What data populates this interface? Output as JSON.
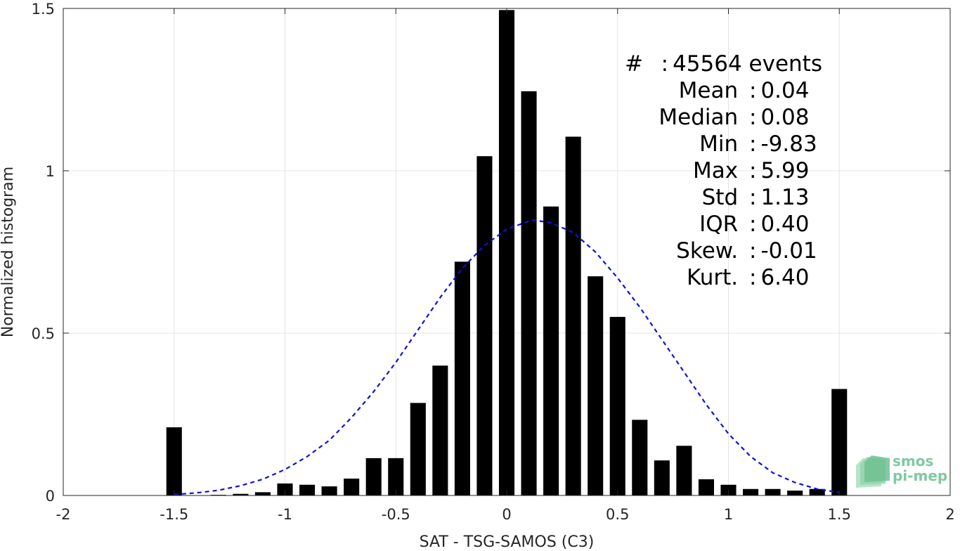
{
  "chart_data": {
    "type": "bar",
    "xlabel": "SAT - TSG-SAMOS (C3)",
    "ylabel": "Normalized histogram",
    "xlim": [
      -2,
      2
    ],
    "ylim": [
      0,
      1.5
    ],
    "xticks": [
      -2,
      -1.5,
      -1,
      -0.5,
      0,
      0.5,
      1,
      1.5,
      2
    ],
    "xtick_labels": [
      "-2",
      "-1.5",
      "-1",
      "-0.5",
      "0",
      "0.5",
      "1",
      "1.5",
      "2"
    ],
    "yticks": [
      0,
      0.5,
      1,
      1.5
    ],
    "ytick_labels": [
      "0",
      "0.5",
      "1",
      "1.5"
    ],
    "grid": true,
    "bar_color": "#000000",
    "bars": {
      "x": [
        -1.5,
        -1.4,
        -1.3,
        -1.2,
        -1.1,
        -1.0,
        -0.9,
        -0.8,
        -0.7,
        -0.6,
        -0.5,
        -0.4,
        -0.3,
        -0.2,
        -0.1,
        0.0,
        0.1,
        0.2,
        0.3,
        0.4,
        0.5,
        0.6,
        0.7,
        0.8,
        0.9,
        1.0,
        1.1,
        1.2,
        1.3,
        1.4,
        1.5
      ],
      "values": [
        0.21,
        0.0,
        0.002,
        0.005,
        0.01,
        0.037,
        0.033,
        0.028,
        0.052,
        0.115,
        0.115,
        0.285,
        0.4,
        0.72,
        1.045,
        1.495,
        1.245,
        0.89,
        1.105,
        0.675,
        0.55,
        0.233,
        0.108,
        0.153,
        0.05,
        0.033,
        0.02,
        0.02,
        0.015,
        0.02,
        0.328
      ]
    },
    "fit_curve": {
      "style": "dashed",
      "color": "#1010dd",
      "x": [
        -1.5,
        -1.4,
        -1.3,
        -1.2,
        -1.1,
        -1.0,
        -0.9,
        -0.8,
        -0.7,
        -0.6,
        -0.5,
        -0.4,
        -0.3,
        -0.2,
        -0.1,
        0.0,
        0.1,
        0.12,
        0.2,
        0.3,
        0.4,
        0.5,
        0.6,
        0.7,
        0.8,
        0.9,
        1.0,
        1.1,
        1.2,
        1.3,
        1.4,
        1.5
      ],
      "y": [
        0.003,
        0.008,
        0.016,
        0.03,
        0.05,
        0.08,
        0.12,
        0.17,
        0.24,
        0.32,
        0.41,
        0.51,
        0.61,
        0.7,
        0.77,
        0.82,
        0.845,
        0.848,
        0.84,
        0.81,
        0.75,
        0.67,
        0.58,
        0.48,
        0.38,
        0.28,
        0.19,
        0.12,
        0.07,
        0.04,
        0.02,
        0.009
      ]
    }
  },
  "stats": [
    {
      "name": "#  ",
      "value": "45564 events"
    },
    {
      "name": "Mean ",
      "value": "0.04"
    },
    {
      "name": "Median ",
      "value": "0.08"
    },
    {
      "name": "Min ",
      "value": "-9.83"
    },
    {
      "name": "Max ",
      "value": "5.99"
    },
    {
      "name": "Std ",
      "value": "1.13"
    },
    {
      "name": "IQR ",
      "value": "0.40"
    },
    {
      "name": "Skew. ",
      "value": "-0.01"
    },
    {
      "name": "Kurt. ",
      "value": "6.40"
    }
  ],
  "stats_separator": ":",
  "logo": {
    "line1": "smos",
    "line2": "pi-mep"
  }
}
